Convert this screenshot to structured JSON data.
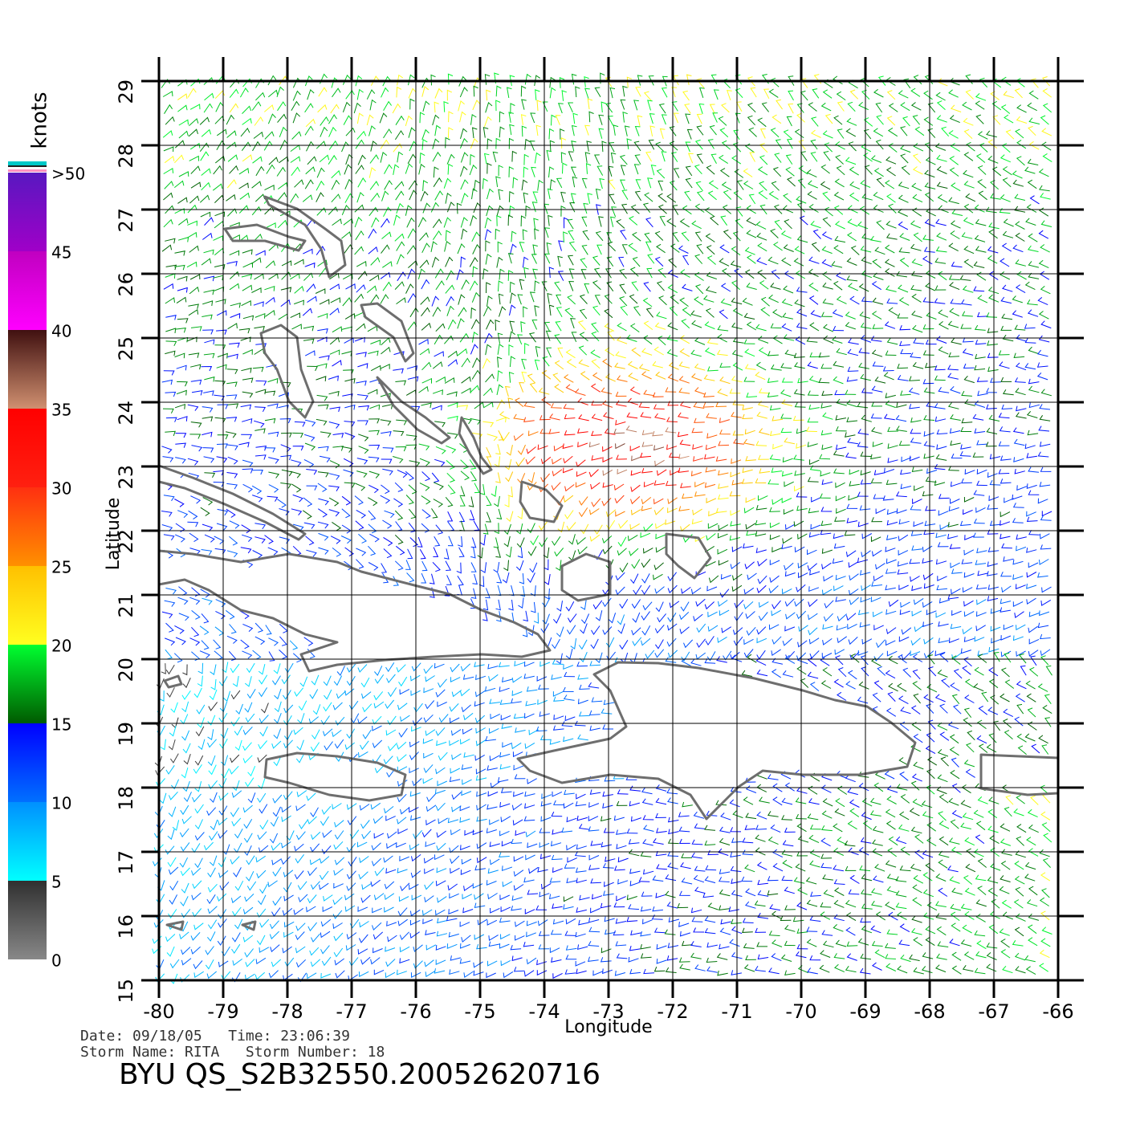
{
  "chart_data": {
    "type": "map",
    "xlabel": "Longitude",
    "ylabel": "Latitude",
    "xlim": [
      -80,
      -66
    ],
    "ylim": [
      15,
      29
    ],
    "xticks": [
      -80,
      -79,
      -78,
      -77,
      -76,
      -75,
      -74,
      -73,
      -72,
      -71,
      -70,
      -69,
      -68,
      -67,
      -66
    ],
    "yticks": [
      15,
      16,
      17,
      18,
      19,
      20,
      21,
      22,
      23,
      24,
      25,
      26,
      27,
      28,
      29
    ],
    "grid": true,
    "colorbar": {
      "label": "knots",
      "lim": [
        0,
        50
      ],
      "ticks": [
        0,
        5,
        10,
        15,
        20,
        25,
        30,
        35,
        40,
        45,
        {
          "value": 50,
          "label": ">50"
        }
      ],
      "colors": [
        [
          "#888888",
          "#303030"
        ],
        [
          "#00ffff",
          "#0090ff"
        ],
        [
          "#0070ff",
          "#0000ff"
        ],
        [
          "#005a00",
          "#00ff30"
        ],
        [
          "#ffff20",
          "#ffc000"
        ],
        [
          "#ff9000",
          "#ff3010"
        ],
        [
          "#ff2010",
          "#ff0000"
        ],
        [
          "#d09070",
          "#401010"
        ],
        [
          "#ff00ff",
          "#c000c0"
        ],
        [
          "#a000c8",
          "#5818c0"
        ]
      ]
    },
    "date_line": "Date: 09/18/05   Time: 23:06:39",
    "storm_line": "Storm Name: RITA   Storm Number: 18",
    "title": "BYU QS_S2B32550.20052620716"
  }
}
